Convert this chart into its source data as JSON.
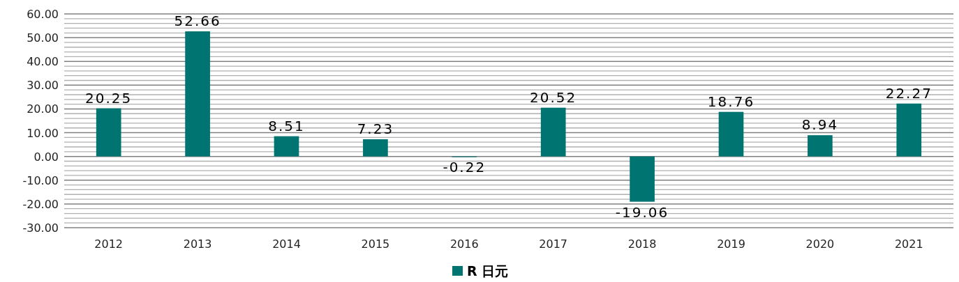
{
  "chart_data": {
    "type": "bar",
    "categories": [
      "2012",
      "2013",
      "2014",
      "2015",
      "2016",
      "2017",
      "2018",
      "2019",
      "2020",
      "2021"
    ],
    "series": [
      {
        "name": "R 日元",
        "color": "#007470",
        "values": [
          20.25,
          52.66,
          8.51,
          7.23,
          -0.22,
          20.52,
          -19.06,
          18.76,
          8.94,
          22.27
        ]
      }
    ],
    "ylim": [
      -30,
      60
    ],
    "yticks": [
      {
        "value": -30,
        "label": "-30.00"
      },
      {
        "value": -20,
        "label": "-20.00"
      },
      {
        "value": -10,
        "label": "-10.00"
      },
      {
        "value": 0,
        "label": "0.00"
      },
      {
        "value": 10,
        "label": "10.00"
      },
      {
        "value": 20,
        "label": "20.00"
      },
      {
        "value": 30,
        "label": "30.00"
      },
      {
        "value": 40,
        "label": "40.00"
      },
      {
        "value": 50,
        "label": "50.00"
      },
      {
        "value": 60,
        "label": "60.00"
      }
    ],
    "grid": "y",
    "data_labels": true,
    "legend": "bottom"
  }
}
